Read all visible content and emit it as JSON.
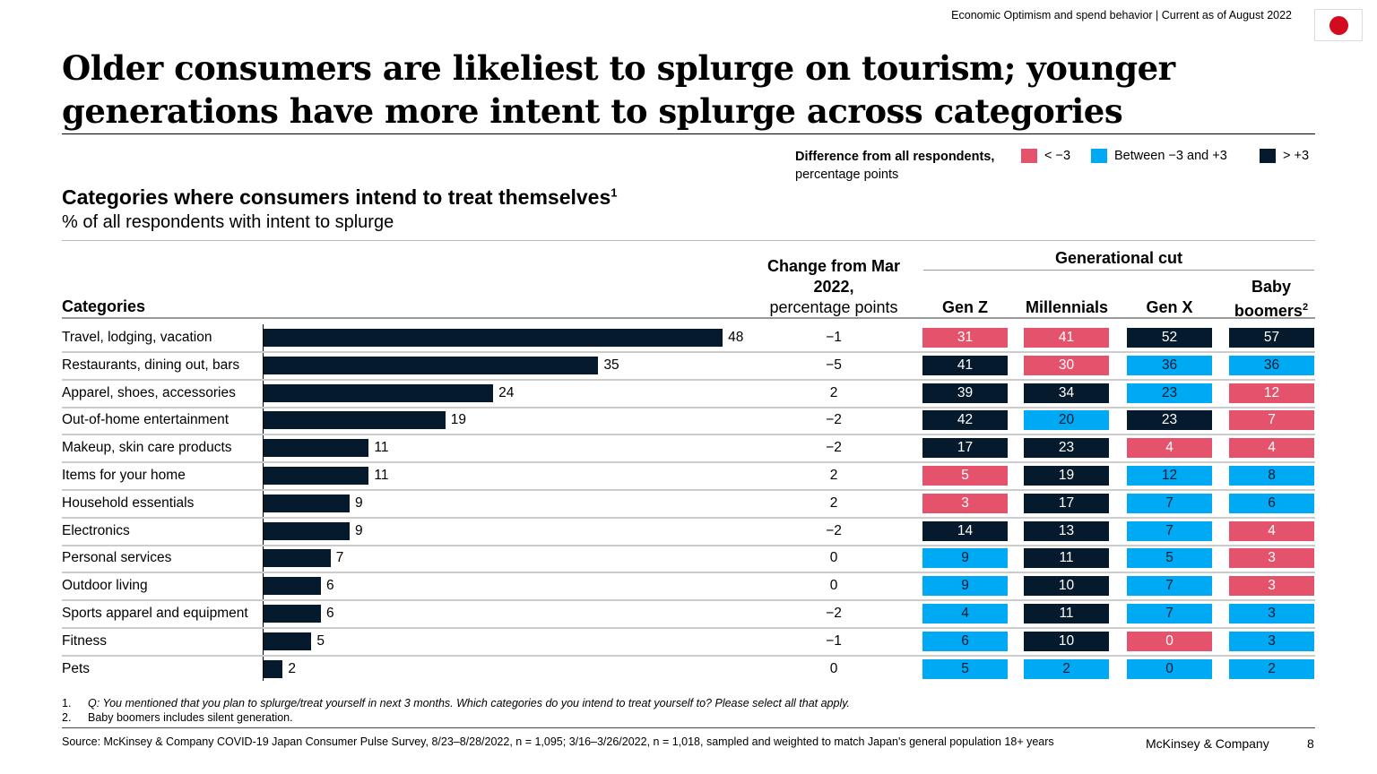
{
  "header": {
    "topline": "Economic Optimism and spend behavior | Current as of August 2022",
    "flag_icon": "japan-flag-icon"
  },
  "title": "Older consumers are likeliest to splurge on tourism; younger generations have more intent to splurge across categories",
  "legend": {
    "label_bold": "Difference from all respondents,",
    "label_rest": "percentage points",
    "items": [
      {
        "label": "< −3",
        "color": "#e5526b",
        "key": "low"
      },
      {
        "label": "Between −3 and +3",
        "color": "#00a9f4",
        "key": "mid"
      },
      {
        "label": "> +3",
        "color": "#061a2e",
        "key": "high"
      }
    ]
  },
  "subtitle": "Categories where consumers intend to treat themselves",
  "subtitle_sup": "1",
  "unit": "% of all respondents with intent to splurge",
  "columns": {
    "categories": "Categories",
    "change": "Change from Mar 2022,",
    "change_unit": "percentage points",
    "generational": "Generational cut",
    "gens": [
      "Gen Z",
      "Millennials",
      "Gen X",
      "Baby boomers"
    ],
    "boomers_sup": "2"
  },
  "chart_data": {
    "type": "bar",
    "orientation": "horizontal",
    "categories": [
      "Travel, lodging, vacation",
      "Restaurants, dining out, bars",
      "Apparel, shoes, accessories",
      "Out-of-home entertainment",
      "Makeup, skin care products",
      "Items for your home",
      "Household essentials",
      "Electronics",
      "Personal services",
      "Outdoor living",
      "Sports apparel and equipment",
      "Fitness",
      "Pets"
    ],
    "values": [
      48,
      35,
      24,
      19,
      11,
      11,
      9,
      9,
      7,
      6,
      6,
      5,
      2
    ],
    "change_from_mar_2022": [
      "−1",
      "−5",
      "2",
      "−2",
      "−2",
      "2",
      "2",
      "−2",
      "0",
      "0",
      "−2",
      "−1",
      "0"
    ],
    "generational": {
      "Gen Z": [
        31,
        41,
        39,
        42,
        17,
        5,
        3,
        14,
        9,
        9,
        4,
        6,
        5
      ],
      "Millennials": [
        41,
        30,
        34,
        20,
        23,
        19,
        17,
        13,
        11,
        10,
        11,
        10,
        2
      ],
      "Gen X": [
        52,
        36,
        23,
        23,
        4,
        12,
        7,
        7,
        5,
        7,
        7,
        0,
        0
      ],
      "Baby boomers": [
        57,
        36,
        12,
        7,
        4,
        8,
        6,
        4,
        3,
        3,
        3,
        3,
        2
      ]
    },
    "generational_class": {
      "Gen Z": [
        "low",
        "high",
        "high",
        "high",
        "high",
        "low",
        "low",
        "high",
        "mid",
        "mid",
        "mid",
        "mid",
        "mid"
      ],
      "Millennials": [
        "low",
        "low",
        "high",
        "mid",
        "high",
        "high",
        "high",
        "high",
        "high",
        "high",
        "high",
        "high",
        "mid"
      ],
      "Gen X": [
        "high",
        "mid",
        "mid",
        "high",
        "low",
        "mid",
        "mid",
        "mid",
        "mid",
        "mid",
        "mid",
        "low",
        "mid"
      ],
      "Baby boomers": [
        "high",
        "mid",
        "low",
        "low",
        "low",
        "mid",
        "mid",
        "low",
        "low",
        "low",
        "mid",
        "mid",
        "mid"
      ]
    }
  },
  "footnotes": [
    {
      "n": "1.",
      "text": "Q: You mentioned that you plan to splurge/treat yourself in next 3 months. Which categories do you intend to treat yourself to? Please select all that apply."
    },
    {
      "n": "2.",
      "text": "Baby boomers includes silent generation."
    }
  ],
  "source": "Source: McKinsey & Company COVID-19 Japan Consumer Pulse Survey, 8/23–8/28/2022, n = 1,095; 3/16–3/26/2022, n = 1,018, sampled and weighted to match Japan's general population 18+ years",
  "brand": "McKinsey & Company",
  "page_number": "8"
}
